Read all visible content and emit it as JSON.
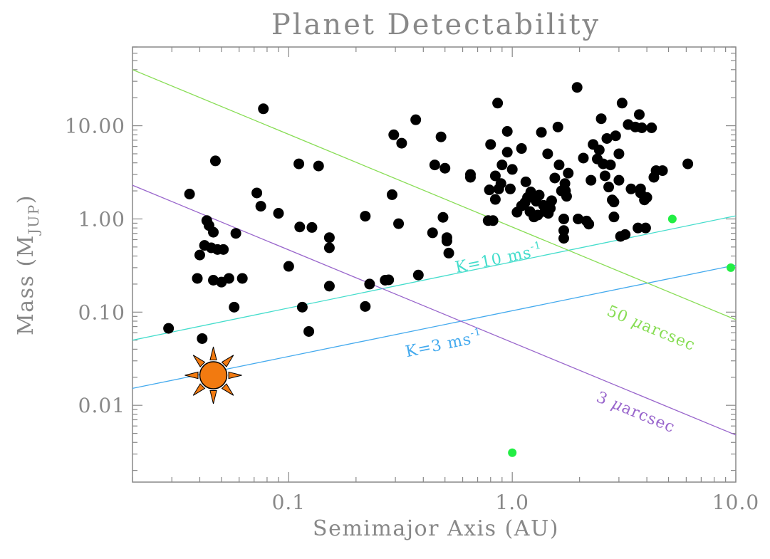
{
  "chart_data": {
    "type": "scatter",
    "title": "Planet Detectability",
    "xlabel": "Semimajor Axis (AU)",
    "ylabel_main": "Mass (M",
    "ylabel_sub": "JUP",
    "ylabel_end": ")",
    "x_scale": "log",
    "y_scale": "log",
    "xlim": [
      0.02,
      10
    ],
    "ylim": [
      0.0015,
      70
    ],
    "x_ticks": [
      {
        "value": 0.1,
        "label": "0.1"
      },
      {
        "value": 1.0,
        "label": "1.0"
      },
      {
        "value": 10.0,
        "label": "10.0"
      }
    ],
    "y_ticks": [
      {
        "value": 0.01,
        "label": "0.01"
      },
      {
        "value": 0.1,
        "label": "0.10"
      },
      {
        "value": 1.0,
        "label": "1.00"
      },
      {
        "value": 10.0,
        "label": "10.00"
      }
    ],
    "grid": false,
    "colors": {
      "axis": "#888888",
      "points": "#000000",
      "solar_system": "#22ee44",
      "sun_fill": "#f27a10",
      "line_50uas": "#88dd55",
      "line_3uas": "#9966cc",
      "line_k10": "#44ddcc",
      "line_k3": "#44aaee"
    },
    "lines": [
      {
        "name": "K=10 ms",
        "sup": "-1",
        "color": "#44ddcc",
        "x": [
          0.02,
          10
        ],
        "y": [
          0.05,
          1.08
        ],
        "label_x": 0.88,
        "label_y": 0.33,
        "rotate": true
      },
      {
        "name": "K=3 ms",
        "sup": "-1",
        "color": "#44aaee",
        "x": [
          0.02,
          10
        ],
        "y": [
          0.0152,
          0.32
        ],
        "label_x": 0.5,
        "label_y": 0.04,
        "rotate": true
      },
      {
        "name": "50 ",
        "greek": "μ",
        "tail": "arcsec",
        "color": "#88dd55",
        "x": [
          0.02,
          10
        ],
        "y": [
          40,
          0.083
        ],
        "label_x": 4.1,
        "label_y": 0.06,
        "rotate": true
      },
      {
        "name": "3 ",
        "greek": "μ",
        "tail": "arcsec",
        "color": "#9966cc",
        "x": [
          0.02,
          10
        ],
        "y": [
          2.3,
          0.0048
        ],
        "label_x": 3.5,
        "label_y": 0.0075,
        "rotate": true
      }
    ],
    "series": [
      {
        "color": "#000000",
        "points": [
          [
            0.029,
            0.067
          ],
          [
            0.036,
            1.85
          ],
          [
            0.039,
            0.23
          ],
          [
            0.04,
            0.41
          ],
          [
            0.041,
            0.052
          ],
          [
            0.042,
            0.52
          ],
          [
            0.043,
            0.96
          ],
          [
            0.044,
            0.85
          ],
          [
            0.045,
            0.49
          ],
          [
            0.046,
            0.22
          ],
          [
            0.046,
            0.72
          ],
          [
            0.047,
            4.2
          ],
          [
            0.048,
            0.47
          ],
          [
            0.05,
            0.21
          ],
          [
            0.051,
            0.47
          ],
          [
            0.054,
            0.23
          ],
          [
            0.057,
            0.113
          ],
          [
            0.058,
            0.7
          ],
          [
            0.062,
            0.23
          ],
          [
            0.072,
            1.9
          ],
          [
            0.075,
            1.37
          ],
          [
            0.077,
            15.2
          ],
          [
            0.09,
            1.15
          ],
          [
            0.1,
            0.31
          ],
          [
            0.111,
            3.9
          ],
          [
            0.112,
            0.82
          ],
          [
            0.115,
            0.113
          ],
          [
            0.123,
            0.062
          ],
          [
            0.127,
            0.81
          ],
          [
            0.136,
            3.7
          ],
          [
            0.152,
            0.63
          ],
          [
            0.152,
            0.49
          ],
          [
            0.152,
            0.19
          ],
          [
            0.22,
            1.07
          ],
          [
            0.22,
            0.115
          ],
          [
            0.23,
            0.2
          ],
          [
            0.27,
            0.22
          ],
          [
            0.28,
            0.222
          ],
          [
            0.29,
            1.82
          ],
          [
            0.295,
            8.0
          ],
          [
            0.31,
            0.89
          ],
          [
            0.32,
            6.5
          ],
          [
            0.37,
            11.6
          ],
          [
            0.38,
            0.25
          ],
          [
            0.44,
            0.71
          ],
          [
            0.45,
            3.8
          ],
          [
            0.48,
            7.6
          ],
          [
            0.49,
            1.04
          ],
          [
            0.5,
            3.5
          ],
          [
            0.51,
            0.63
          ],
          [
            0.51,
            0.58
          ],
          [
            0.52,
            0.43
          ],
          [
            0.65,
            3.0
          ],
          [
            0.65,
            2.8
          ],
          [
            0.78,
            0.96
          ],
          [
            0.79,
            2.05
          ],
          [
            0.8,
            6.3
          ],
          [
            0.82,
            0.96
          ],
          [
            0.84,
            2.9
          ],
          [
            0.84,
            1.62
          ],
          [
            0.86,
            17.5
          ],
          [
            0.87,
            2.1
          ],
          [
            0.89,
            2.4
          ],
          [
            0.9,
            3.8
          ],
          [
            0.95,
            8.7
          ],
          [
            0.95,
            5.2
          ],
          [
            0.98,
            2.1
          ],
          [
            1.0,
            3.4
          ],
          [
            1.05,
            1.18
          ],
          [
            1.1,
            5.7
          ],
          [
            1.1,
            1.38
          ],
          [
            1.14,
            1.5
          ],
          [
            1.15,
            2.5
          ],
          [
            1.17,
            1.7
          ],
          [
            1.2,
            1.2
          ],
          [
            1.21,
            1.95
          ],
          [
            1.23,
            1.7
          ],
          [
            1.25,
            1.05
          ],
          [
            1.28,
            1.55
          ],
          [
            1.3,
            1.1
          ],
          [
            1.32,
            1.8
          ],
          [
            1.35,
            8.5
          ],
          [
            1.38,
            1.4
          ],
          [
            1.4,
            1.2
          ],
          [
            1.44,
            5.0
          ],
          [
            1.45,
            1.15
          ],
          [
            1.48,
            1.3
          ],
          [
            1.5,
            1.57
          ],
          [
            1.55,
            2.75
          ],
          [
            1.6,
            9.7
          ],
          [
            1.62,
            3.8
          ],
          [
            1.66,
            2.0
          ],
          [
            1.7,
            0.75
          ],
          [
            1.7,
            0.62
          ],
          [
            1.7,
            1.0
          ],
          [
            1.72,
            2.4
          ],
          [
            1.73,
            2.0
          ],
          [
            1.75,
            1.75
          ],
          [
            1.78,
            3.1
          ],
          [
            1.95,
            25.8
          ],
          [
            1.97,
            1.0
          ],
          [
            2.08,
            4.5
          ],
          [
            2.15,
            0.95
          ],
          [
            2.2,
            0.88
          ],
          [
            2.25,
            2.6
          ],
          [
            2.3,
            6.3
          ],
          [
            2.4,
            4.4
          ],
          [
            2.45,
            5.5
          ],
          [
            2.5,
            11.9
          ],
          [
            2.55,
            3.9
          ],
          [
            2.6,
            2.9
          ],
          [
            2.65,
            7.3
          ],
          [
            2.7,
            2.2
          ],
          [
            2.75,
            3.8
          ],
          [
            2.8,
            1.6
          ],
          [
            2.85,
            1.52
          ],
          [
            2.85,
            1.05
          ],
          [
            2.9,
            7.8
          ],
          [
            3.0,
            5.0
          ],
          [
            3.0,
            2.6
          ],
          [
            3.05,
            0.65
          ],
          [
            3.1,
            17.5
          ],
          [
            3.2,
            0.68
          ],
          [
            3.3,
            10.3
          ],
          [
            3.4,
            2.1
          ],
          [
            3.55,
            9.7
          ],
          [
            3.65,
            0.8
          ],
          [
            3.7,
            13.2
          ],
          [
            3.75,
            2.1
          ],
          [
            3.75,
            1.9
          ],
          [
            3.8,
            9.5
          ],
          [
            3.9,
            1.6
          ],
          [
            3.95,
            0.8
          ],
          [
            4.0,
            1.7
          ],
          [
            4.2,
            9.5
          ],
          [
            4.3,
            2.8
          ],
          [
            4.4,
            3.3
          ],
          [
            4.7,
            3.3
          ],
          [
            6.1,
            3.9
          ]
        ]
      },
      {
        "color": "#22ee44",
        "points": [
          [
            1.0,
            0.0031
          ],
          [
            5.2,
            1.0
          ],
          [
            9.5,
            0.3
          ]
        ]
      }
    ],
    "sun": {
      "x": 0.046,
      "y": 0.021
    }
  }
}
